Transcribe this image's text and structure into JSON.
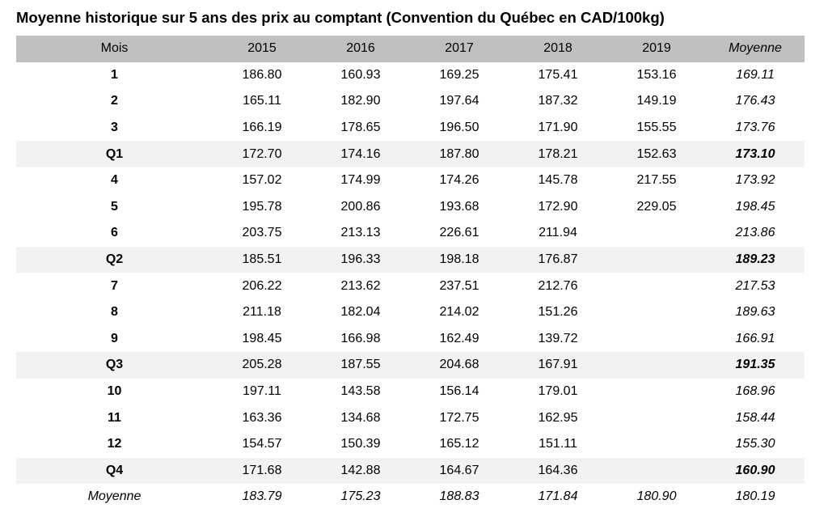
{
  "title": "Moyenne historique sur 5 ans des prix au comptant (Convention du Québec en CAD/100kg)",
  "colors": {
    "header_bg": "#c0c0c0",
    "quarter_row_bg": "#f2f2f2",
    "text": "#000000",
    "page_bg": "#ffffff"
  },
  "table": {
    "columns": [
      "Mois",
      "2015",
      "2016",
      "2017",
      "2018",
      "2019",
      "Moyenne"
    ],
    "rows": [
      {
        "label": "1",
        "type": "month",
        "values": [
          "186.80",
          "160.93",
          "169.25",
          "175.41",
          "153.16",
          "169.11"
        ]
      },
      {
        "label": "2",
        "type": "month",
        "values": [
          "165.11",
          "182.90",
          "197.64",
          "187.32",
          "149.19",
          "176.43"
        ]
      },
      {
        "label": "3",
        "type": "month",
        "values": [
          "166.19",
          "178.65",
          "196.50",
          "171.90",
          "155.55",
          "173.76"
        ]
      },
      {
        "label": "Q1",
        "type": "quarter",
        "values": [
          "172.70",
          "174.16",
          "187.80",
          "178.21",
          "152.63",
          "173.10"
        ]
      },
      {
        "label": "4",
        "type": "month",
        "values": [
          "157.02",
          "174.99",
          "174.26",
          "145.78",
          "217.55",
          "173.92"
        ]
      },
      {
        "label": "5",
        "type": "month",
        "values": [
          "195.78",
          "200.86",
          "193.68",
          "172.90",
          "229.05",
          "198.45"
        ]
      },
      {
        "label": "6",
        "type": "month",
        "values": [
          "203.75",
          "213.13",
          "226.61",
          "211.94",
          "",
          "213.86"
        ]
      },
      {
        "label": "Q2",
        "type": "quarter",
        "values": [
          "185.51",
          "196.33",
          "198.18",
          "176.87",
          "",
          "189.23"
        ]
      },
      {
        "label": "7",
        "type": "month",
        "values": [
          "206.22",
          "213.62",
          "237.51",
          "212.76",
          "",
          "217.53"
        ]
      },
      {
        "label": "8",
        "type": "month",
        "values": [
          "211.18",
          "182.04",
          "214.02",
          "151.26",
          "",
          "189.63"
        ]
      },
      {
        "label": "9",
        "type": "month",
        "values": [
          "198.45",
          "166.98",
          "162.49",
          "139.72",
          "",
          "166.91"
        ]
      },
      {
        "label": "Q3",
        "type": "quarter",
        "values": [
          "205.28",
          "187.55",
          "204.68",
          "167.91",
          "",
          "191.35"
        ]
      },
      {
        "label": "10",
        "type": "month",
        "values": [
          "197.11",
          "143.58",
          "156.14",
          "179.01",
          "",
          "168.96"
        ]
      },
      {
        "label": "11",
        "type": "month",
        "values": [
          "163.36",
          "134.68",
          "172.75",
          "162.95",
          "",
          "158.44"
        ]
      },
      {
        "label": "12",
        "type": "month",
        "values": [
          "154.57",
          "150.39",
          "165.12",
          "151.11",
          "",
          "155.30"
        ]
      },
      {
        "label": "Q4",
        "type": "quarter",
        "values": [
          "171.68",
          "142.88",
          "164.67",
          "164.36",
          "",
          "160.90"
        ]
      },
      {
        "label": "Moyenne",
        "type": "average",
        "values": [
          "183.79",
          "175.23",
          "188.83",
          "171.84",
          "180.90",
          "180.19"
        ]
      }
    ]
  }
}
